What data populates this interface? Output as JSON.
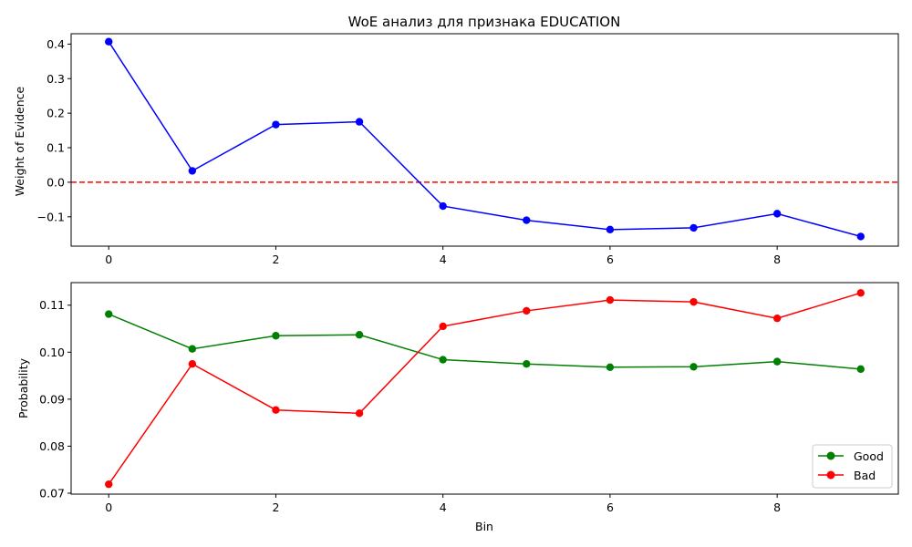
{
  "chart_data": [
    {
      "type": "line",
      "title": "WoE анализ для признака EDUCATION",
      "xlabel": "",
      "ylabel": "Weight of Evidence",
      "x": [
        0,
        1,
        2,
        3,
        4,
        5,
        6,
        7,
        8,
        9
      ],
      "xlim": [
        -0.45,
        9.45
      ],
      "ylim": [
        -0.185,
        0.43
      ],
      "xticks": [
        0,
        2,
        4,
        6,
        8
      ],
      "xtick_labels": [
        "0",
        "2",
        "4",
        "6",
        "8"
      ],
      "yticks": [
        -0.1,
        0.0,
        0.1,
        0.2,
        0.3,
        0.4
      ],
      "ytick_labels": [
        "−0.1",
        "0.0",
        "0.1",
        "0.2",
        "0.3",
        "0.4"
      ],
      "grid": false,
      "series": [
        {
          "color": "#0000ff",
          "marker": "circle",
          "values": [
            0.407,
            0.033,
            0.167,
            0.175,
            -0.069,
            -0.11,
            -0.137,
            -0.132,
            -0.091,
            -0.157
          ]
        }
      ],
      "reference_line": {
        "y": 0.0,
        "color": "#ff0000",
        "style": "dashed"
      }
    },
    {
      "type": "line",
      "title": "",
      "xlabel": "Bin",
      "ylabel": "Probability",
      "x": [
        0,
        1,
        2,
        3,
        4,
        5,
        6,
        7,
        8,
        9
      ],
      "xlim": [
        -0.45,
        9.45
      ],
      "ylim": [
        0.0698,
        0.1148
      ],
      "xticks": [
        0,
        2,
        4,
        6,
        8
      ],
      "xtick_labels": [
        "0",
        "2",
        "4",
        "6",
        "8"
      ],
      "yticks": [
        0.07,
        0.08,
        0.09,
        0.1,
        0.11
      ],
      "ytick_labels": [
        "0.07",
        "0.08",
        "0.09",
        "0.10",
        "0.11"
      ],
      "grid": false,
      "legend": "lower-right",
      "series": [
        {
          "name": "Good",
          "color": "#008000",
          "marker": "circle",
          "values": [
            0.1081,
            0.1007,
            0.1035,
            0.1037,
            0.0984,
            0.0975,
            0.0968,
            0.0969,
            0.098,
            0.0964
          ]
        },
        {
          "name": "Bad",
          "color": "#ff0000",
          "marker": "circle",
          "values": [
            0.0719,
            0.0975,
            0.0877,
            0.087,
            0.1055,
            0.1088,
            0.1111,
            0.1107,
            0.1072,
            0.1126
          ]
        }
      ]
    }
  ]
}
